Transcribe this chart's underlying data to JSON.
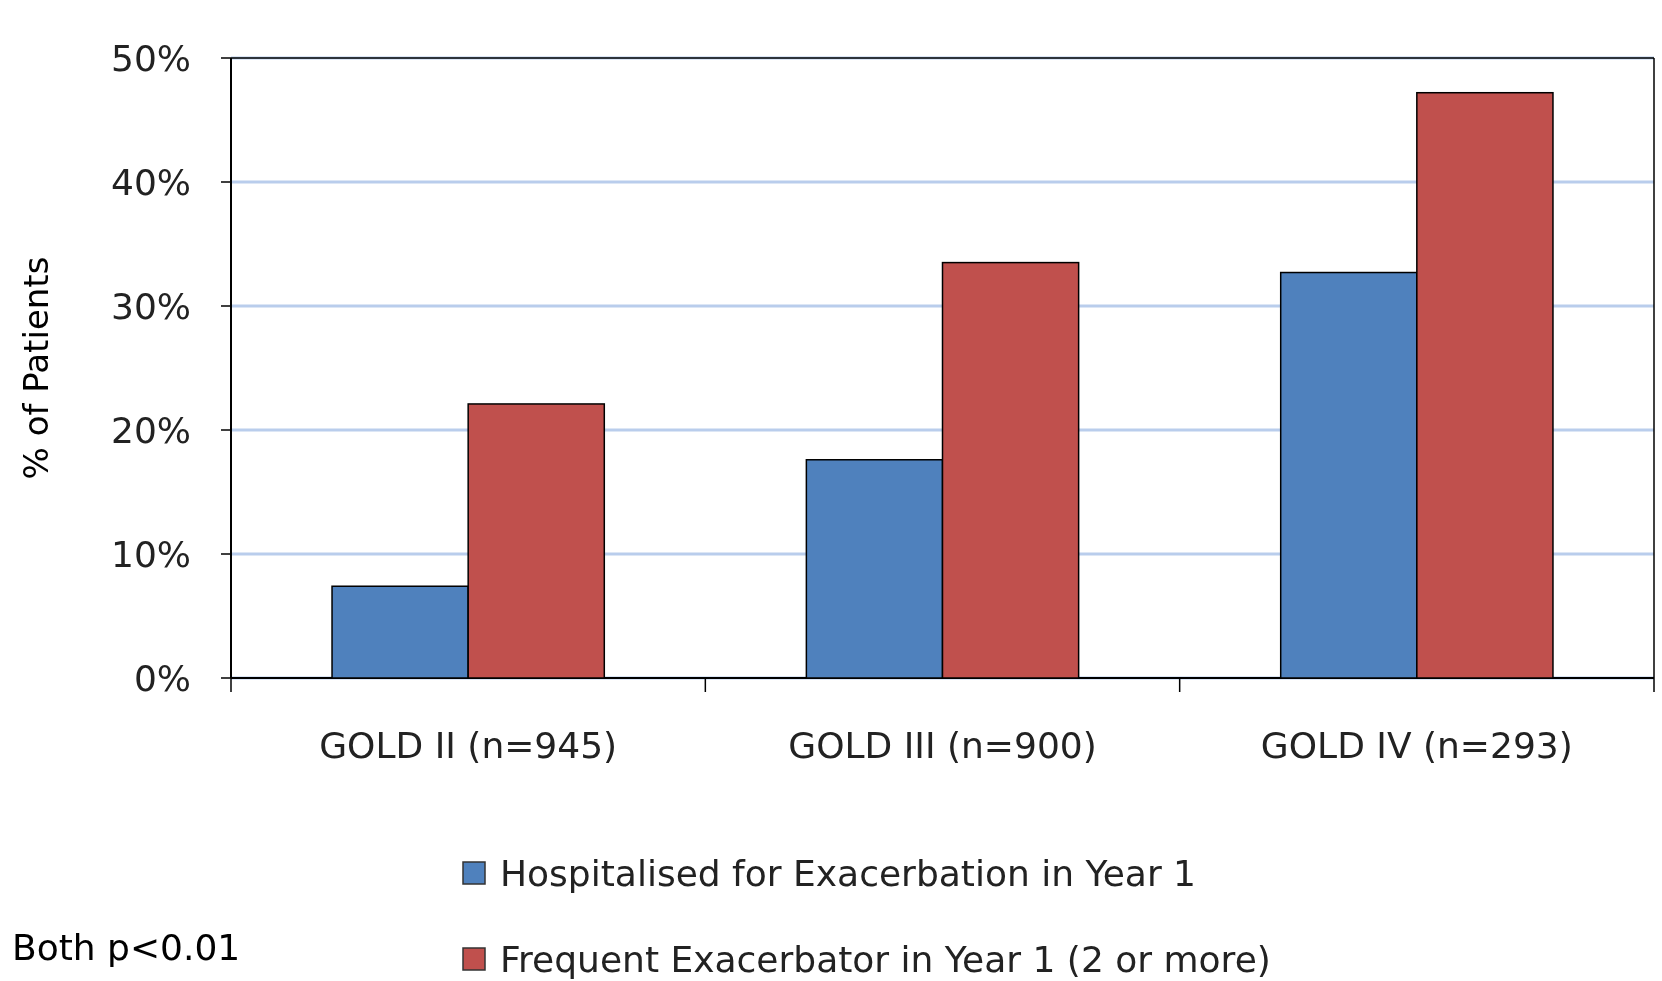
{
  "chart_data": {
    "type": "bar",
    "ylabel": "% of Patients",
    "categories": [
      "GOLD II (n=945)",
      "GOLD III (n=900)",
      "GOLD IV (n=293)"
    ],
    "series": [
      {
        "name": "Hospitalised for Exacerbation in Year 1",
        "color": "#4f81bd",
        "values": [
          7.4,
          17.6,
          32.7
        ]
      },
      {
        "name": "Frequent Exacerbator in Year 1 (2 or more)",
        "color": "#c0504d",
        "values": [
          22.1,
          33.5,
          47.2
        ]
      }
    ],
    "ylim": [
      0,
      50
    ],
    "yticks": [
      {
        "value": 0,
        "label": "0%"
      },
      {
        "value": 10,
        "label": "10%"
      },
      {
        "value": 20,
        "label": "20%"
      },
      {
        "value": 30,
        "label": "30%"
      },
      {
        "value": 40,
        "label": "40%"
      },
      {
        "value": 50,
        "label": "50%"
      }
    ],
    "grid": "y",
    "legend": "bottom",
    "annotations": [
      "Both p<0.01"
    ]
  }
}
